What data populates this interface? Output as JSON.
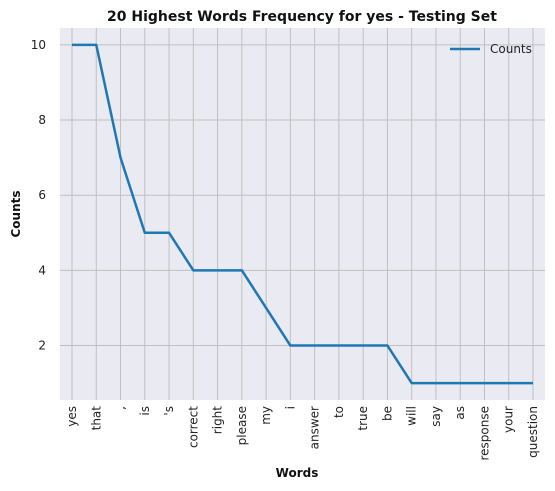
{
  "chart_data": {
    "type": "line",
    "title": "20 Highest Words Frequency for yes - Testing Set",
    "xlabel": "Words",
    "ylabel": "Counts",
    "categories": [
      "yes",
      "that",
      ",",
      "is",
      "'s",
      "correct",
      "right",
      "please",
      "my",
      "i",
      "answer",
      "to",
      "true",
      "be",
      "will",
      "say",
      "as",
      "response",
      "your",
      "question"
    ],
    "series": [
      {
        "name": "Counts",
        "values": [
          10,
          10,
          7,
          5,
          5,
          4,
          4,
          4,
          3,
          2,
          2,
          2,
          2,
          2,
          1,
          1,
          1,
          1,
          1,
          1
        ]
      }
    ],
    "yticks": [
      2,
      4,
      6,
      8,
      10
    ],
    "ylim": [
      0.55,
      10.45
    ],
    "grid": true,
    "legend": "top-right",
    "colors": {
      "line": "#1f77b4",
      "plot_bg": "#eaeaf2",
      "grid": "#c0c0c0",
      "page_bg": "#ffffff"
    }
  }
}
